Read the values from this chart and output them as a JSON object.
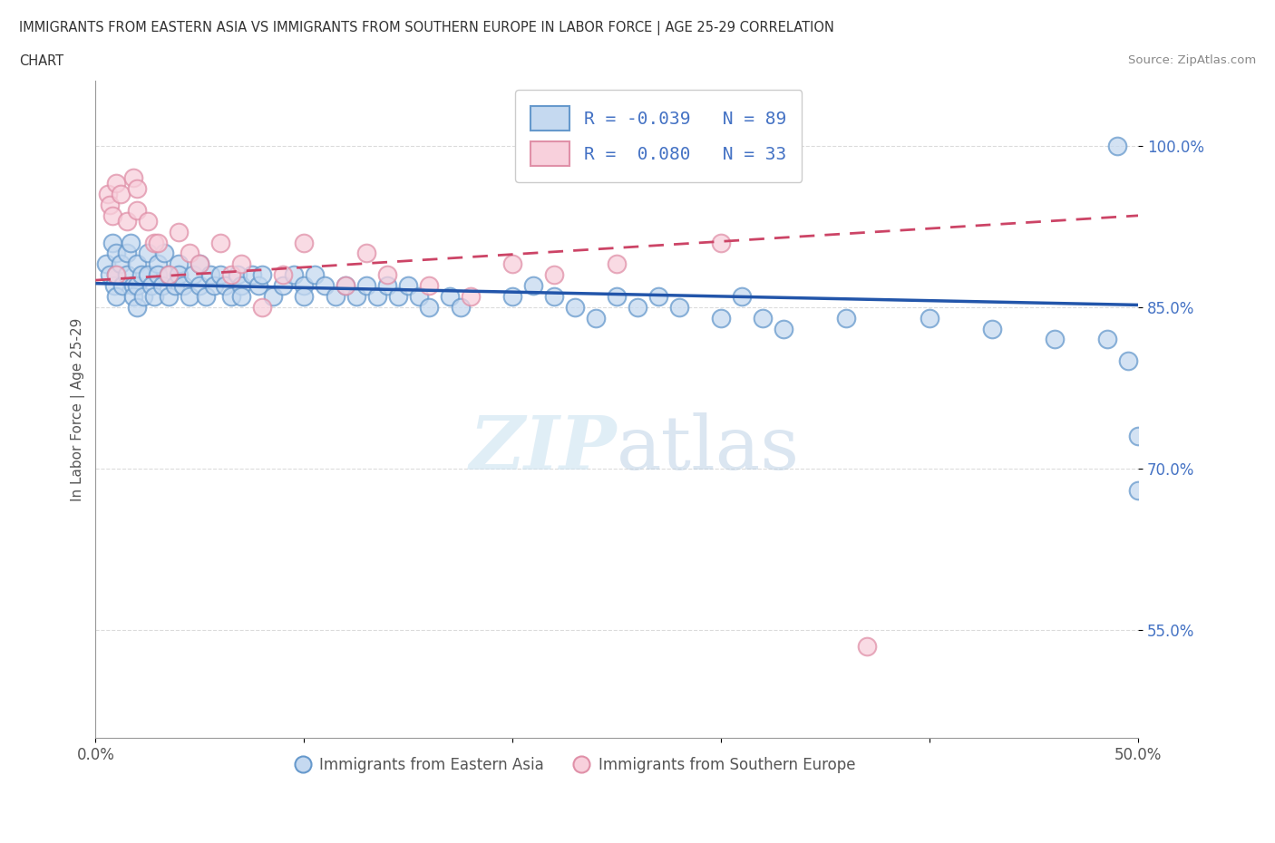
{
  "title_line1": "IMMIGRANTS FROM EASTERN ASIA VS IMMIGRANTS FROM SOUTHERN EUROPE IN LABOR FORCE | AGE 25-29 CORRELATION",
  "title_line2": "CHART",
  "source_text": "Source: ZipAtlas.com",
  "ylabel": "In Labor Force | Age 25-29",
  "x_min": 0.0,
  "x_max": 0.5,
  "y_min": 0.45,
  "y_max": 1.06,
  "y_ticks": [
    0.55,
    0.7,
    0.85,
    1.0
  ],
  "y_tick_labels": [
    "55.0%",
    "70.0%",
    "85.0%",
    "100.0%"
  ],
  "x_ticks": [
    0.0,
    0.1,
    0.2,
    0.3,
    0.4,
    0.5
  ],
  "x_tick_labels": [
    "0.0%",
    "",
    "",
    "",
    "",
    "50.0%"
  ],
  "eastern_asia_fill": "#c5d9f0",
  "eastern_asia_edge": "#6699cc",
  "southern_europe_fill": "#f8d0dc",
  "southern_europe_edge": "#e090a8",
  "eastern_asia_line_color": "#2255aa",
  "southern_europe_line_color": "#cc4466",
  "R_eastern": -0.039,
  "N_eastern": 89,
  "R_southern": 0.08,
  "N_southern": 33,
  "legend_label_eastern": "Immigrants from Eastern Asia",
  "legend_label_southern": "Immigrants from Southern Europe",
  "watermark_zip": "ZIP",
  "watermark_atlas": "atlas",
  "background_color": "#ffffff",
  "ytick_color": "#4472c4",
  "title_color": "#333333",
  "grid_color": "#cccccc",
  "legend_R_color": "#cc0000",
  "legend_N_color": "#333333"
}
